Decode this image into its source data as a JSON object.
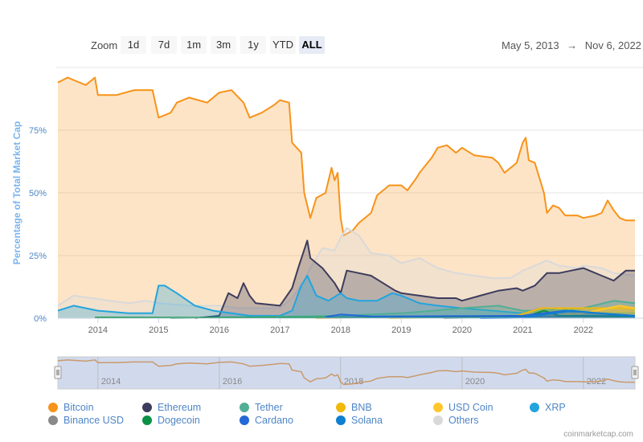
{
  "toolbar": {
    "zoom_label": "Zoom",
    "buttons": [
      "1d",
      "7d",
      "1m",
      "3m",
      "1y",
      "YTD",
      "ALL"
    ],
    "active": "ALL",
    "range_from": "May 5, 2013",
    "range_sep": "→",
    "range_to": "Nov 6, 2022"
  },
  "credit": "coinmarketcap.com",
  "chart_data": {
    "type": "area",
    "ylabel": "Percentage of Total Market Cap",
    "ylim": [
      0,
      100
    ],
    "yticks": [
      "0%",
      "25%",
      "50%",
      "75%"
    ],
    "ytick_values": [
      0,
      25,
      50,
      75
    ],
    "xlim": [
      2013.34,
      2022.85
    ],
    "xticks": [
      "2014",
      "2015",
      "2016",
      "2017",
      "2018",
      "2019",
      "2020",
      "2021",
      "2022"
    ],
    "xtick_values": [
      2014,
      2015,
      2016,
      2017,
      2018,
      2019,
      2020,
      2021,
      2022
    ],
    "navigator_ticks": [
      "2014",
      "2016",
      "2018",
      "2020",
      "2022"
    ],
    "navigator_tick_values": [
      2014,
      2016,
      2018,
      2020,
      2022
    ],
    "legend_position": "bottom",
    "series": [
      {
        "name": "Bitcoin",
        "color": "#f7931a",
        "x": [
          2013.34,
          2013.5,
          2013.8,
          2013.95,
          2014.0,
          2014.3,
          2014.6,
          2014.9,
          2015.0,
          2015.2,
          2015.3,
          2015.5,
          2015.8,
          2016.0,
          2016.2,
          2016.4,
          2016.5,
          2016.7,
          2016.9,
          2017.0,
          2017.15,
          2017.2,
          2017.35,
          2017.4,
          2017.5,
          2017.6,
          2017.75,
          2017.85,
          2017.9,
          2017.95,
          2018.0,
          2018.05,
          2018.2,
          2018.3,
          2018.5,
          2018.6,
          2018.8,
          2019.0,
          2019.1,
          2019.25,
          2019.3,
          2019.5,
          2019.6,
          2019.75,
          2019.9,
          2020.0,
          2020.2,
          2020.5,
          2020.6,
          2020.7,
          2020.9,
          2021.0,
          2021.05,
          2021.1,
          2021.2,
          2021.35,
          2021.4,
          2021.5,
          2021.6,
          2021.7,
          2021.9,
          2022.0,
          2022.2,
          2022.3,
          2022.4,
          2022.5,
          2022.6,
          2022.7,
          2022.85
        ],
        "y": [
          94,
          96,
          93,
          96,
          89,
          89,
          91,
          91,
          80,
          82,
          86,
          88,
          86,
          90,
          91,
          86,
          80,
          82,
          85,
          87,
          86,
          70,
          66,
          50,
          40,
          48,
          50,
          60,
          55,
          58,
          40,
          33,
          35,
          38,
          42,
          49,
          53,
          53,
          51,
          56,
          58,
          64,
          68,
          69,
          66,
          68,
          65,
          64,
          62,
          58,
          62,
          70,
          72,
          63,
          62,
          50,
          42,
          45,
          44,
          41,
          41,
          40,
          41,
          42,
          47,
          43,
          40,
          39,
          39
        ]
      },
      {
        "name": "Ethereum",
        "color": "#3c3c5d",
        "x": [
          2015.6,
          2016.0,
          2016.15,
          2016.3,
          2016.4,
          2016.5,
          2016.6,
          2017.0,
          2017.2,
          2017.3,
          2017.45,
          2017.5,
          2017.7,
          2017.9,
          2018.0,
          2018.1,
          2018.3,
          2018.5,
          2018.7,
          2018.9,
          2019.0,
          2019.3,
          2019.6,
          2019.9,
          2020.0,
          2020.3,
          2020.6,
          2020.9,
          2021.0,
          2021.2,
          2021.4,
          2021.6,
          2021.8,
          2022.0,
          2022.3,
          2022.5,
          2022.7,
          2022.85
        ],
        "y": [
          0,
          1,
          10,
          8,
          14,
          9,
          6,
          5,
          12,
          20,
          31,
          24,
          20,
          14,
          10,
          19,
          18,
          17,
          14,
          11,
          10,
          9,
          8,
          8,
          7,
          9,
          11,
          12,
          11,
          13,
          18,
          18,
          19,
          20,
          17,
          15,
          19,
          19
        ]
      },
      {
        "name": "Tether",
        "color": "#50af95",
        "x": [
          2015.2,
          2018.0,
          2019.0,
          2020.0,
          2020.6,
          2021.0,
          2021.5,
          2022.0,
          2022.5,
          2022.85
        ],
        "y": [
          0,
          1,
          2,
          4,
          5,
          3,
          3,
          4,
          7,
          6
        ]
      },
      {
        "name": "BNB",
        "color": "#f0b90b",
        "x": [
          2017.6,
          2020.9,
          2021.3,
          2022.0,
          2022.85
        ],
        "y": [
          0,
          1,
          4,
          4,
          4
        ]
      },
      {
        "name": "USD Coin",
        "color": "#ffc72c",
        "x": [
          2018.8,
          2021.0,
          2022.0,
          2022.6,
          2022.85
        ],
        "y": [
          0,
          0.5,
          2,
          5,
          4
        ]
      },
      {
        "name": "XRP",
        "color": "#23a4dd",
        "x": [
          2013.34,
          2013.6,
          2014.0,
          2014.5,
          2014.9,
          2015.0,
          2015.1,
          2015.3,
          2015.6,
          2015.9,
          2016.5,
          2017.0,
          2017.2,
          2017.35,
          2017.45,
          2017.6,
          2017.8,
          2018.0,
          2018.1,
          2018.3,
          2018.6,
          2018.85,
          2019.0,
          2019.3,
          2019.6,
          2020.0,
          2020.5,
          2021.0,
          2021.3,
          2022.0,
          2022.85
        ],
        "y": [
          3,
          5,
          3,
          2,
          2,
          13,
          13,
          10,
          5,
          3,
          1,
          1,
          3,
          13,
          17,
          9,
          7,
          10,
          8,
          7,
          7,
          10,
          9,
          6,
          5,
          4,
          3,
          2,
          4,
          2,
          2
        ]
      },
      {
        "name": "Binance USD",
        "color": "#8a8a8a",
        "x": [
          2019.7,
          2021.0,
          2022.0,
          2022.85
        ],
        "y": [
          0,
          0.5,
          1,
          1
        ]
      },
      {
        "name": "Dogecoin",
        "color": "#0b9145",
        "x": [
          2013.95,
          2016.0,
          2021.0,
          2021.35,
          2021.6,
          2022.85
        ],
        "y": [
          0.3,
          0.2,
          0.3,
          3,
          1,
          0.7
        ]
      },
      {
        "name": "Cardano",
        "color": "#2369d7",
        "x": [
          2017.75,
          2018.0,
          2018.5,
          2021.0,
          2021.7,
          2022.85
        ],
        "y": [
          0.5,
          1.5,
          0.7,
          1,
          3,
          1
        ]
      },
      {
        "name": "Solana",
        "color": "#0f7fd1",
        "x": [
          2020.3,
          2021.0,
          2021.8,
          2022.85
        ],
        "y": [
          0,
          0.2,
          3,
          0.7
        ]
      },
      {
        "name": "Others",
        "color": "#d9d9d9",
        "x": [
          2013.34,
          2013.6,
          2013.9,
          2014.2,
          2014.5,
          2014.8,
          2015.0,
          2015.5,
          2016.0,
          2016.3,
          2016.7,
          2017.0,
          2017.2,
          2017.4,
          2017.5,
          2017.7,
          2017.9,
          2018.0,
          2018.1,
          2018.3,
          2018.5,
          2018.8,
          2019.0,
          2019.3,
          2019.6,
          2019.9,
          2020.2,
          2020.5,
          2020.8,
          2021.0,
          2021.2,
          2021.4,
          2021.6,
          2021.9,
          2022.0,
          2022.3,
          2022.5,
          2022.85
        ],
        "y": [
          5,
          9,
          8,
          7,
          6,
          7,
          6,
          5,
          5,
          4,
          4,
          4,
          8,
          15,
          20,
          28,
          27,
          32,
          36,
          33,
          26,
          25,
          22,
          24,
          20,
          18,
          17,
          16,
          16,
          19,
          21,
          23,
          21,
          20,
          21,
          20,
          18,
          17
        ]
      }
    ]
  }
}
